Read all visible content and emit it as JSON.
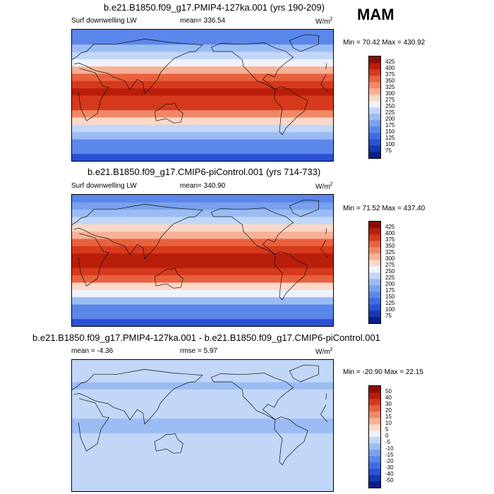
{
  "season": "MAM",
  "chart_data": [
    {
      "type": "heatmap",
      "title": "b.e21.B1850.f09_g17.PMIP4-127ka.001 (yrs 190-209)",
      "variable": "Surf downwelling LW",
      "mean_label": "mean= 336.54",
      "units": "W/m",
      "units_exp": "2",
      "minmax_label": "Min =  70.42 Max = 430.92",
      "levels": [
        "75",
        "100",
        "125",
        "150",
        "175",
        "200",
        "225",
        "250",
        "275",
        "300",
        "325",
        "350",
        "375",
        "400",
        "425"
      ],
      "colors": [
        "#0b1f8a",
        "#1537b4",
        "#2a52d4",
        "#3f6ce6",
        "#5b86ea",
        "#7aa0ee",
        "#9bbcf3",
        "#c2d6f7",
        "#eef2fa",
        "#fbd8c7",
        "#f6b196",
        "#f08868",
        "#e8623f",
        "#d63a1c",
        "#b91e0b",
        "#8e0b02"
      ],
      "lat_rows": [
        -85,
        -75,
        -65,
        -55,
        -45,
        -35,
        -25,
        -15,
        -5,
        5,
        15,
        25,
        35,
        45,
        55,
        65,
        75,
        85
      ],
      "lat_values": [
        120,
        150,
        170,
        205,
        245,
        290,
        345,
        375,
        395,
        405,
        385,
        355,
        310,
        270,
        230,
        205,
        170,
        150
      ]
    },
    {
      "type": "heatmap",
      "title": "b.e21.B1850.f09_g17.CMIP6-piControl.001 (yrs 714-733)",
      "variable": "Surf downwelling LW",
      "mean_label": "mean= 340.90",
      "units": "W/m",
      "units_exp": "2",
      "minmax_label": "Min =  71.52 Max = 437.40",
      "levels": [
        "75",
        "100",
        "125",
        "150",
        "175",
        "200",
        "225",
        "250",
        "275",
        "300",
        "325",
        "350",
        "375",
        "400",
        "425"
      ],
      "colors": [
        "#0b1f8a",
        "#1537b4",
        "#2a52d4",
        "#3f6ce6",
        "#5b86ea",
        "#7aa0ee",
        "#9bbcf3",
        "#c2d6f7",
        "#eef2fa",
        "#fbd8c7",
        "#f6b196",
        "#f08868",
        "#e8623f",
        "#d63a1c",
        "#b91e0b",
        "#8e0b02"
      ],
      "lat_rows": [
        -85,
        -75,
        -65,
        -55,
        -45,
        -35,
        -25,
        -15,
        -5,
        5,
        15,
        25,
        35,
        45,
        55,
        65,
        75,
        85
      ],
      "lat_values": [
        120,
        150,
        172,
        208,
        250,
        295,
        350,
        380,
        400,
        408,
        390,
        360,
        318,
        278,
        238,
        212,
        175,
        155
      ]
    },
    {
      "type": "heatmap",
      "title": "b.e21.B1850.f09_g17.PMIP4-127ka.001 - b.e21.B1850.f09_g17.CMIP6-piControl.001",
      "mean_label": "mean =  -4.36",
      "rmse_label": "rmse =   5.97",
      "units": "W/m",
      "units_exp": "2",
      "minmax_label": "Min = -20.90 Max =  22.15",
      "levels": [
        "-50",
        "-40",
        "-30",
        "-20",
        "-15",
        "-10",
        "-5",
        "0",
        "5",
        "10",
        "15",
        "20",
        "30",
        "40",
        "50"
      ],
      "colors": [
        "#0b1f8a",
        "#1537b4",
        "#2a52d4",
        "#3f6ce6",
        "#5b86ea",
        "#7aa0ee",
        "#9bbcf3",
        "#c2d6f7",
        "#eef2fa",
        "#fbd8c7",
        "#f6b196",
        "#f08868",
        "#e8623f",
        "#d63a1c",
        "#b91e0b",
        "#8e0b02"
      ],
      "lat_rows": [
        -85,
        -75,
        -65,
        -55,
        -45,
        -35,
        -25,
        -15,
        -5,
        5,
        15,
        25,
        35,
        45,
        55,
        65,
        75,
        85
      ],
      "lat_values": [
        -2,
        -4,
        -5,
        -3,
        -4,
        -5,
        -4,
        -5,
        -6,
        -6,
        -5,
        -4,
        -3,
        -5,
        -6,
        -4,
        -3,
        -2
      ]
    }
  ]
}
